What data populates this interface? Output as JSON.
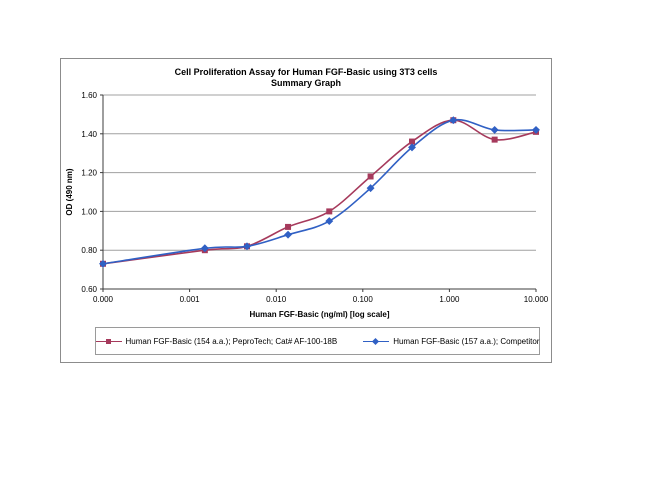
{
  "chart": {
    "title_line1": "Cell Proliferation Assay for Human FGF-Basic using 3T3 cells",
    "title_line2": "Summary Graph",
    "y_axis_title": "OD (490 nm)",
    "x_axis_title": "Human FGF-Basic (ng/ml) [log scale]",
    "frame_border_color": "#8c8c8c",
    "gridline_color": "#a0a0a0",
    "axis_color": "#3c3c3c",
    "legend": [
      {
        "label": "Human FGF-Basic (154 a.a.); PeproTech; Cat# AF-100-18B",
        "marker": "square",
        "color": "#a63a5c"
      },
      {
        "label": "Human FGF-Basic (157 a.a.); Competitor",
        "marker": "diamond",
        "color": "#3060c4"
      }
    ]
  },
  "chart_data": {
    "type": "line",
    "title": "Cell Proliferation Assay for Human FGF-Basic using 3T3 cells — Summary Graph",
    "xlabel": "Human FGF-Basic (ng/ml) [log scale]",
    "ylabel": "OD (490 nm)",
    "x_scale": "log, 5 decades; zero-dose control plotted at left origin labeled 0.000",
    "x": [
      0,
      0.0015,
      0.0046,
      0.0137,
      0.041,
      0.123,
      0.37,
      1.11,
      3.33,
      10
    ],
    "x_tick_labels": [
      "0.000",
      "0.001",
      "0.010",
      "0.100",
      "1.000",
      "10.000"
    ],
    "y_ticks": [
      0.6,
      0.8,
      1.0,
      1.2,
      1.4,
      1.6
    ],
    "y_tick_labels": [
      "0.60",
      "0.80",
      "1.00",
      "1.20",
      "1.40",
      "1.60"
    ],
    "ylim": [
      0.6,
      1.6
    ],
    "grid": "horizontal",
    "line_style": "smoothed",
    "legend_position": "bottom",
    "series": [
      {
        "name": "Human FGF-Basic (154 a.a.); PeproTech; Cat# AF-100-18B",
        "marker": "square",
        "color": "#a63a5c",
        "values": [
          0.73,
          0.8,
          0.82,
          0.92,
          1.0,
          1.18,
          1.36,
          1.47,
          1.37,
          1.41
        ]
      },
      {
        "name": "Human FGF-Basic (157 a.a.); Competitor",
        "marker": "diamond",
        "color": "#3060c4",
        "values": [
          0.73,
          0.81,
          0.82,
          0.88,
          0.95,
          1.12,
          1.33,
          1.47,
          1.42,
          1.42
        ]
      }
    ]
  }
}
